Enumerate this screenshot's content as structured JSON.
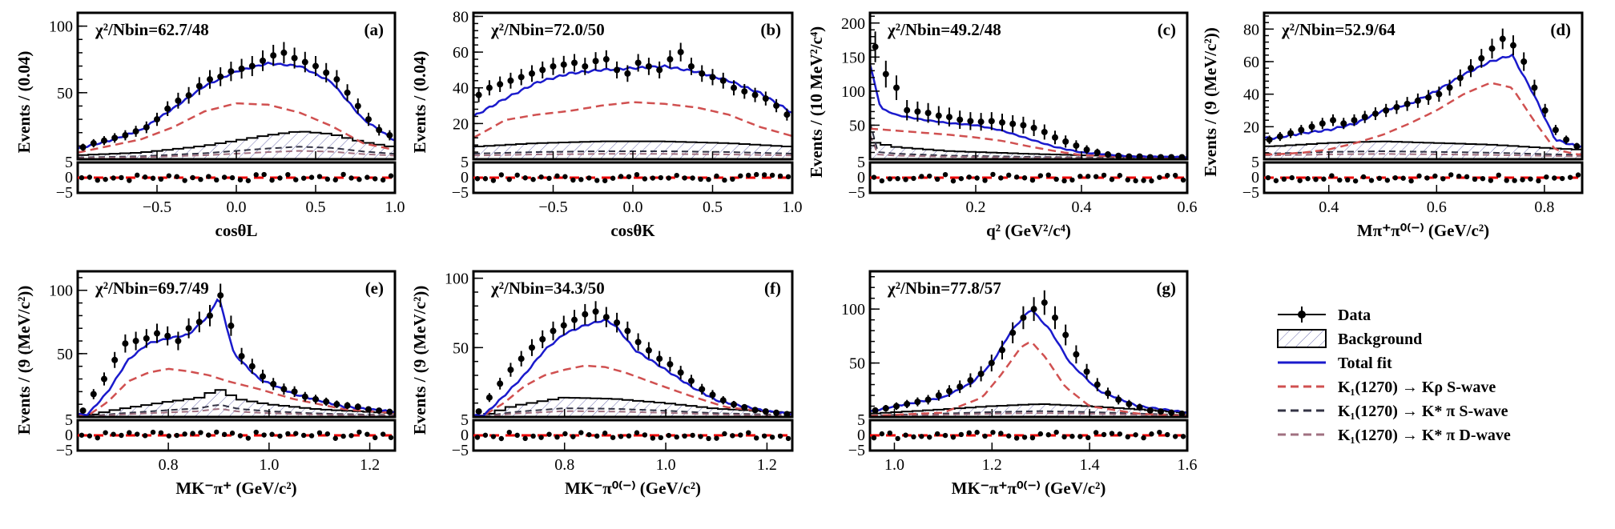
{
  "legend": {
    "data": "Data",
    "background": "Background",
    "total": "Total fit",
    "krho_s": "K₁(1270) → Kρ S-wave",
    "kstar_s": "K₁(1270) → K* π S-wave",
    "kstar_d": "K₁(1270) → K* π D-wave"
  },
  "colors": {
    "data": "#000000",
    "total": "#1a1acc",
    "krho": "#d05050",
    "kstar_s": "#333344",
    "kstar_d": "#a07080",
    "background_hatch": "#7070b0",
    "zero_line": "#ee0000"
  },
  "chart_data": [
    {
      "id": "a",
      "tag": "(a)",
      "type": "line",
      "chi2": "χ²/Nbin=62.7/48",
      "xlabel": "cosθL",
      "ylabel": "Events / (0.04)",
      "xlim": [
        -1.0,
        1.0
      ],
      "ylim": [
        0,
        110
      ],
      "xticks": [
        -0.5,
        0.0,
        0.5,
        1.0
      ],
      "yticks": [
        50,
        100
      ],
      "pull_ticks": [
        5,
        0,
        -5
      ],
      "total": [
        [
          -1,
          8
        ],
        [
          -0.8,
          14
        ],
        [
          -0.6,
          22
        ],
        [
          -0.4,
          38
        ],
        [
          -0.2,
          55
        ],
        [
          0,
          66
        ],
        [
          0.2,
          72
        ],
        [
          0.4,
          70
        ],
        [
          0.6,
          58
        ],
        [
          0.8,
          30
        ],
        [
          1,
          14
        ]
      ],
      "krho": [
        [
          -1,
          5
        ],
        [
          -0.6,
          15
        ],
        [
          -0.4,
          24
        ],
        [
          -0.2,
          36
        ],
        [
          0,
          42
        ],
        [
          0.2,
          41
        ],
        [
          0.4,
          35
        ],
        [
          0.6,
          25
        ],
        [
          0.8,
          12
        ],
        [
          1,
          7
        ]
      ],
      "background": [
        [
          -1,
          3
        ],
        [
          -0.6,
          5
        ],
        [
          -0.2,
          10
        ],
        [
          0,
          14
        ],
        [
          0.2,
          18
        ],
        [
          0.4,
          21
        ],
        [
          0.6,
          19
        ],
        [
          0.8,
          13
        ],
        [
          1,
          9
        ]
      ],
      "data_y": [
        9,
        12,
        14,
        16,
        18,
        21,
        24,
        30,
        38,
        44,
        48,
        55,
        60,
        62,
        66,
        68,
        70,
        74,
        78,
        80,
        76,
        73,
        70,
        65,
        60,
        50,
        40,
        30,
        22,
        18
      ]
    },
    {
      "id": "b",
      "tag": "(b)",
      "type": "line",
      "chi2": "χ²/Nbin=72.0/50",
      "xlabel": "cosθK",
      "ylabel": "Events / (0.04)",
      "xlim": [
        -1.0,
        1.0
      ],
      "ylim": [
        0,
        82
      ],
      "xticks": [
        -0.5,
        0.0,
        0.5,
        1.0
      ],
      "yticks": [
        20,
        40,
        60,
        80
      ],
      "pull_ticks": [
        5,
        0,
        -5
      ],
      "total": [
        [
          -1,
          24
        ],
        [
          -0.8,
          34
        ],
        [
          -0.6,
          43
        ],
        [
          -0.4,
          48
        ],
        [
          -0.2,
          50
        ],
        [
          0,
          51
        ],
        [
          0.2,
          52
        ],
        [
          0.4,
          49
        ],
        [
          0.6,
          44
        ],
        [
          0.8,
          37
        ],
        [
          1,
          26
        ]
      ],
      "krho": [
        [
          -1,
          12
        ],
        [
          -0.8,
          22
        ],
        [
          -0.6,
          25
        ],
        [
          -0.4,
          27
        ],
        [
          -0.2,
          30
        ],
        [
          0,
          32
        ],
        [
          0.2,
          31
        ],
        [
          0.4,
          29
        ],
        [
          0.6,
          25
        ],
        [
          0.8,
          18
        ],
        [
          1,
          13
        ]
      ],
      "background": [
        [
          -1,
          7
        ],
        [
          -0.6,
          9
        ],
        [
          -0.2,
          10
        ],
        [
          0.2,
          10
        ],
        [
          0.6,
          9
        ],
        [
          1,
          7
        ]
      ],
      "data_y": [
        36,
        40,
        42,
        44,
        46,
        48,
        50,
        52,
        53,
        54,
        52,
        55,
        56,
        50,
        48,
        54,
        52,
        50,
        56,
        60,
        52,
        48,
        46,
        44,
        40,
        38,
        36,
        34,
        30,
        25
      ]
    },
    {
      "id": "c",
      "tag": "(c)",
      "type": "line",
      "chi2": "χ²/Nbin=49.2/48",
      "xlabel": "q² (GeV²/c⁴)",
      "ylabel": "Events / (10 MeV²/c⁴)",
      "xlim": [
        0.0,
        0.6
      ],
      "ylim": [
        0,
        215
      ],
      "xticks": [
        0.2,
        0.4,
        0.6
      ],
      "yticks": [
        50,
        100,
        150,
        200
      ],
      "pull_ticks": [
        5,
        0,
        -5
      ],
      "total": [
        [
          0,
          140
        ],
        [
          0.02,
          75
        ],
        [
          0.05,
          65
        ],
        [
          0.1,
          58
        ],
        [
          0.15,
          53
        ],
        [
          0.2,
          50
        ],
        [
          0.25,
          42
        ],
        [
          0.3,
          30
        ],
        [
          0.35,
          18
        ],
        [
          0.4,
          10
        ],
        [
          0.5,
          4
        ],
        [
          0.6,
          3
        ]
      ],
      "krho": [
        [
          0,
          45
        ],
        [
          0.05,
          42
        ],
        [
          0.1,
          39
        ],
        [
          0.15,
          36
        ],
        [
          0.2,
          32
        ],
        [
          0.25,
          27
        ],
        [
          0.3,
          19
        ],
        [
          0.35,
          12
        ],
        [
          0.4,
          6
        ],
        [
          0.5,
          3
        ],
        [
          0.6,
          2
        ]
      ],
      "background": [
        [
          0,
          120
        ],
        [
          0.005,
          25
        ],
        [
          0.05,
          18
        ],
        [
          0.15,
          12
        ],
        [
          0.3,
          8
        ],
        [
          0.45,
          5
        ],
        [
          0.6,
          3
        ]
      ],
      "data_y": [
        165,
        125,
        105,
        72,
        70,
        68,
        64,
        62,
        58,
        56,
        55,
        56,
        54,
        52,
        50,
        46,
        40,
        32,
        26,
        20,
        14,
        10,
        7,
        5,
        4,
        4,
        3,
        3,
        3,
        3
      ]
    },
    {
      "id": "d",
      "tag": "(d)",
      "type": "line",
      "chi2": "χ²/Nbin=52.9/64",
      "xlabel": "Mπ⁺π⁰⁽⁻⁾ (GeV/c²)",
      "ylabel": "Events / (9 (MeV/c²))",
      "xlim": [
        0.28,
        0.87
      ],
      "ylim": [
        0,
        90
      ],
      "xticks": [
        0.4,
        0.6,
        0.8
      ],
      "yticks": [
        20,
        40,
        60,
        80
      ],
      "pull_ticks": [
        5,
        0,
        -5
      ],
      "total": [
        [
          0.3,
          13
        ],
        [
          0.35,
          16
        ],
        [
          0.4,
          18
        ],
        [
          0.45,
          22
        ],
        [
          0.5,
          30
        ],
        [
          0.55,
          34
        ],
        [
          0.6,
          42
        ],
        [
          0.65,
          52
        ],
        [
          0.7,
          60
        ],
        [
          0.74,
          64
        ],
        [
          0.78,
          40
        ],
        [
          0.82,
          12
        ],
        [
          0.86,
          8
        ]
      ],
      "krho": [
        [
          0.3,
          3
        ],
        [
          0.35,
          4
        ],
        [
          0.4,
          6
        ],
        [
          0.45,
          10
        ],
        [
          0.5,
          15
        ],
        [
          0.55,
          22
        ],
        [
          0.6,
          30
        ],
        [
          0.65,
          40
        ],
        [
          0.7,
          47
        ],
        [
          0.74,
          44
        ],
        [
          0.78,
          24
        ],
        [
          0.82,
          6
        ],
        [
          0.86,
          3
        ]
      ],
      "background": [
        [
          0.3,
          8
        ],
        [
          0.4,
          10
        ],
        [
          0.5,
          11
        ],
        [
          0.6,
          10
        ],
        [
          0.7,
          9
        ],
        [
          0.8,
          7
        ],
        [
          0.86,
          6
        ]
      ],
      "data_y": [
        12,
        14,
        16,
        18,
        20,
        22,
        24,
        22,
        24,
        26,
        28,
        30,
        32,
        34,
        36,
        38,
        40,
        44,
        50,
        56,
        62,
        68,
        74,
        70,
        60,
        44,
        30,
        18,
        12,
        8
      ]
    },
    {
      "id": "e",
      "tag": "(e)",
      "type": "line",
      "chi2": "χ²/Nbin=69.7/49",
      "xlabel": "MK⁻π⁺ (GeV/c²)",
      "ylabel": "Events / (9 (MeV/c²))",
      "xlim": [
        0.62,
        1.25
      ],
      "ylim": [
        0,
        115
      ],
      "xticks": [
        0.8,
        1.0,
        1.2
      ],
      "yticks": [
        50,
        100
      ],
      "pull_ticks": [
        5,
        0,
        -5
      ],
      "total": [
        [
          0.64,
          2
        ],
        [
          0.68,
          20
        ],
        [
          0.72,
          45
        ],
        [
          0.76,
          58
        ],
        [
          0.8,
          62
        ],
        [
          0.84,
          65
        ],
        [
          0.88,
          80
        ],
        [
          0.9,
          95
        ],
        [
          0.93,
          50
        ],
        [
          0.98,
          30
        ],
        [
          1.05,
          18
        ],
        [
          1.15,
          8
        ],
        [
          1.25,
          4
        ]
      ],
      "krho": [
        [
          0.64,
          1
        ],
        [
          0.68,
          12
        ],
        [
          0.72,
          28
        ],
        [
          0.76,
          35
        ],
        [
          0.8,
          38
        ],
        [
          0.84,
          36
        ],
        [
          0.88,
          33
        ],
        [
          0.92,
          28
        ],
        [
          0.98,
          22
        ],
        [
          1.05,
          14
        ],
        [
          1.15,
          6
        ],
        [
          1.25,
          3
        ]
      ],
      "background": [
        [
          0.64,
          1
        ],
        [
          0.7,
          6
        ],
        [
          0.8,
          12
        ],
        [
          0.86,
          15
        ],
        [
          0.9,
          22
        ],
        [
          0.94,
          14
        ],
        [
          1.0,
          10
        ],
        [
          1.1,
          6
        ],
        [
          1.25,
          3
        ]
      ],
      "data_y": [
        5,
        18,
        30,
        45,
        58,
        60,
        62,
        66,
        64,
        60,
        70,
        75,
        80,
        96,
        72,
        48,
        40,
        32,
        26,
        22,
        20,
        16,
        14,
        12,
        10,
        9,
        8,
        6,
        5,
        4
      ]
    },
    {
      "id": "f",
      "tag": "(f)",
      "type": "line",
      "chi2": "χ²/Nbin=34.3/50",
      "xlabel": "MK⁻π⁰⁽⁻⁾ (GeV/c²)",
      "ylabel": "Events / (9 (MeV/c²))",
      "xlim": [
        0.62,
        1.25
      ],
      "ylim": [
        0,
        105
      ],
      "xticks": [
        0.8,
        1.0,
        1.2
      ],
      "yticks": [
        50,
        100
      ],
      "pull_ticks": [
        5,
        0,
        -5
      ],
      "total": [
        [
          0.64,
          1
        ],
        [
          0.68,
          15
        ],
        [
          0.72,
          30
        ],
        [
          0.76,
          48
        ],
        [
          0.8,
          60
        ],
        [
          0.84,
          66
        ],
        [
          0.88,
          70
        ],
        [
          0.9,
          66
        ],
        [
          0.94,
          48
        ],
        [
          1.0,
          34
        ],
        [
          1.05,
          22
        ],
        [
          1.1,
          12
        ],
        [
          1.2,
          4
        ],
        [
          1.25,
          2
        ]
      ],
      "krho": [
        [
          0.64,
          1
        ],
        [
          0.68,
          10
        ],
        [
          0.72,
          22
        ],
        [
          0.76,
          30
        ],
        [
          0.8,
          34
        ],
        [
          0.84,
          37
        ],
        [
          0.88,
          36
        ],
        [
          0.92,
          32
        ],
        [
          0.98,
          24
        ],
        [
          1.05,
          15
        ],
        [
          1.12,
          7
        ],
        [
          1.25,
          2
        ]
      ],
      "background": [
        [
          0.64,
          1
        ],
        [
          0.7,
          8
        ],
        [
          0.8,
          14
        ],
        [
          0.9,
          13
        ],
        [
          1.0,
          10
        ],
        [
          1.1,
          6
        ],
        [
          1.25,
          3
        ]
      ],
      "data_y": [
        4,
        14,
        24,
        34,
        42,
        50,
        56,
        62,
        66,
        70,
        74,
        76,
        72,
        68,
        62,
        54,
        48,
        42,
        38,
        32,
        26,
        20,
        16,
        12,
        9,
        7,
        5,
        4,
        3,
        2
      ]
    },
    {
      "id": "g",
      "tag": "(g)",
      "type": "line",
      "chi2": "χ²/Nbin=77.8/57",
      "xlabel": "MK⁻π⁺π⁰⁽⁻⁾ (GeV/c²)",
      "ylabel": "",
      "xlim": [
        0.95,
        1.6
      ],
      "ylim": [
        0,
        135
      ],
      "xticks": [
        1.0,
        1.2,
        1.4,
        1.6
      ],
      "yticks": [
        50,
        100
      ],
      "pull_ticks": [
        5,
        0,
        -5
      ],
      "total": [
        [
          0.95,
          5
        ],
        [
          1.0,
          10
        ],
        [
          1.1,
          18
        ],
        [
          1.16,
          32
        ],
        [
          1.2,
          50
        ],
        [
          1.24,
          80
        ],
        [
          1.28,
          100
        ],
        [
          1.32,
          80
        ],
        [
          1.36,
          50
        ],
        [
          1.42,
          24
        ],
        [
          1.5,
          10
        ],
        [
          1.6,
          4
        ]
      ],
      "krho": [
        [
          0.95,
          1
        ],
        [
          1.1,
          4
        ],
        [
          1.18,
          18
        ],
        [
          1.22,
          40
        ],
        [
          1.26,
          65
        ],
        [
          1.28,
          70
        ],
        [
          1.31,
          55
        ],
        [
          1.35,
          28
        ],
        [
          1.4,
          10
        ],
        [
          1.5,
          3
        ],
        [
          1.6,
          1
        ]
      ],
      "background": [
        [
          0.95,
          3
        ],
        [
          1.1,
          7
        ],
        [
          1.2,
          10
        ],
        [
          1.3,
          12
        ],
        [
          1.4,
          10
        ],
        [
          1.5,
          7
        ],
        [
          1.6,
          4
        ]
      ],
      "data_y": [
        6,
        8,
        10,
        12,
        14,
        16,
        20,
        24,
        28,
        34,
        40,
        50,
        62,
        78,
        92,
        100,
        106,
        92,
        76,
        58,
        42,
        30,
        22,
        16,
        12,
        9,
        6,
        5,
        4,
        3
      ]
    }
  ]
}
